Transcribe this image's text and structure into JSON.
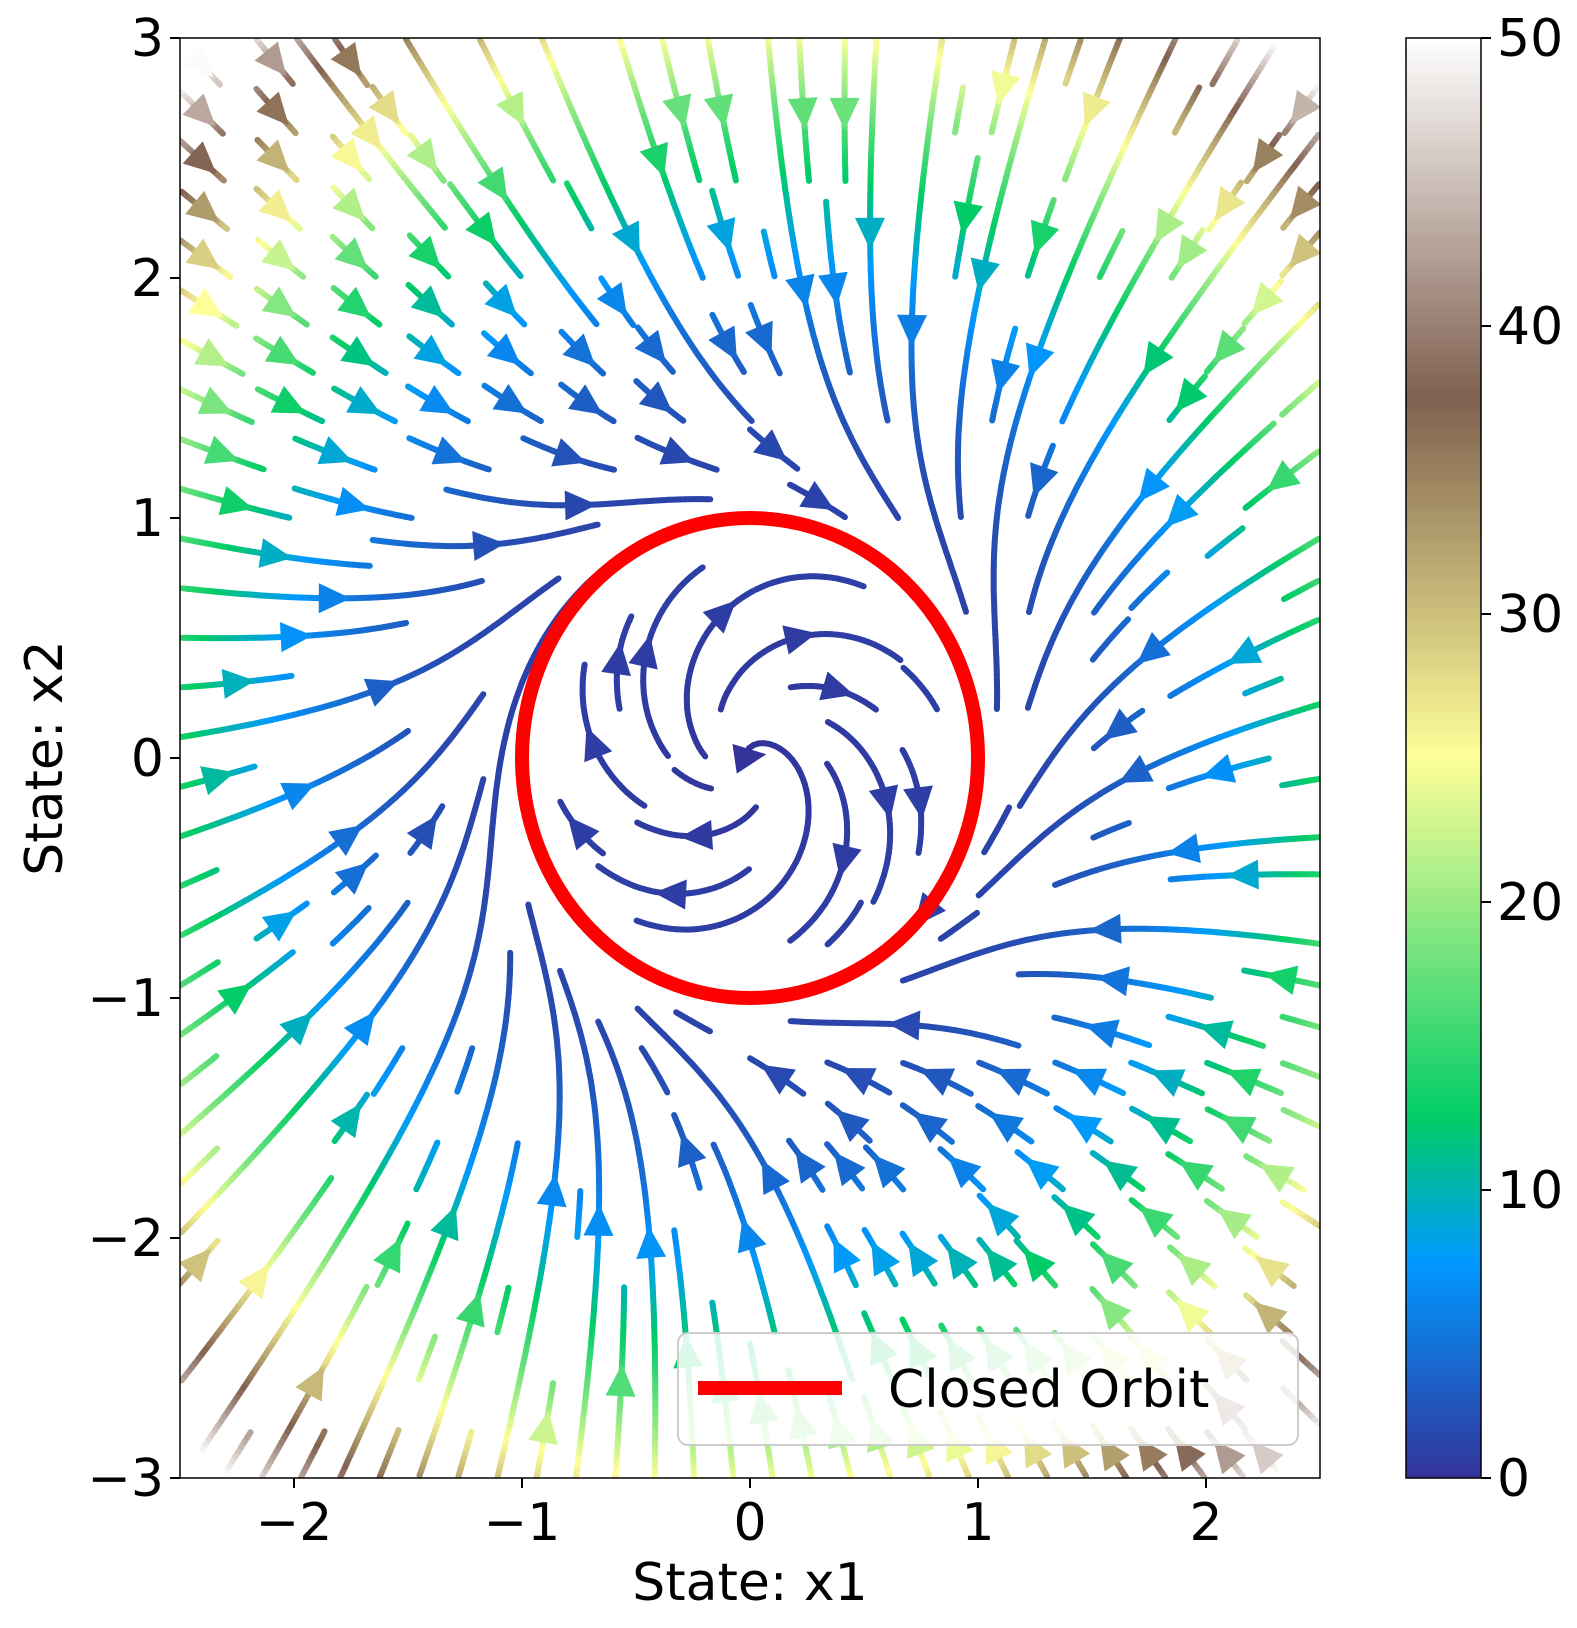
{
  "chart_data": {
    "type": "streamplot",
    "title": "",
    "xlabel": "State: x1",
    "ylabel": "State: x2",
    "xlim": [
      -2.5,
      2.5
    ],
    "ylim": [
      -3,
      3
    ],
    "xticks": [
      -2,
      -1,
      0,
      1,
      2
    ],
    "xtick_labels": [
      "−2",
      "−1",
      "0",
      "1",
      "2"
    ],
    "yticks": [
      -3,
      -2,
      -1,
      0,
      1,
      2,
      3
    ],
    "ytick_labels": [
      "−3",
      "−2",
      "−1",
      "0",
      "1",
      "2",
      "3"
    ],
    "vector_field": {
      "dx1": "x2 + x1*(1 - x1^2 - x2^2)",
      "dx2": "-x1 + x2*(1 - x1^2 - x2^2)",
      "color_by": "speed"
    },
    "colorbar": {
      "colormap": "terrain",
      "range": [
        0,
        50
      ],
      "ticks": [
        0,
        10,
        20,
        30,
        40,
        50
      ],
      "tick_labels": [
        "0",
        "10",
        "20",
        "30",
        "40",
        "50"
      ]
    },
    "closed_orbit": {
      "name": "Closed Orbit",
      "shape": "circle",
      "center": [
        0,
        0
      ],
      "radius": 1,
      "color": "#ff0000"
    },
    "legend": {
      "placement": "lower-right",
      "entries": [
        "Closed Orbit"
      ]
    },
    "grid": false
  }
}
